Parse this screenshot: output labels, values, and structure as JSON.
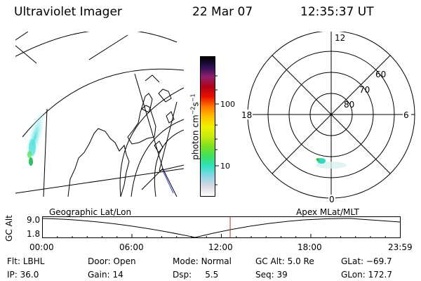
{
  "header": {
    "instrument": "Ultraviolet Imager",
    "date": "22 Mar 07",
    "time": "12:35:37 UT"
  },
  "colorbar": {
    "unit_label": "photon cm",
    "unit_exp1": "−2",
    "unit_mid": "s",
    "unit_exp2": "−1",
    "ticks": [
      "100",
      "10"
    ],
    "stops": [
      "#ffffff",
      "#d8d8e0",
      "#8ad8e8",
      "#30e0c0",
      "#40e060",
      "#7de020",
      "#c8ec10",
      "#f0f000",
      "#ffc000",
      "#ff7800",
      "#e81000",
      "#b00018",
      "#902070",
      "#2a1050",
      "#000000"
    ]
  },
  "polar": {
    "mlt_labels": [
      "12",
      "6",
      "0",
      "18"
    ],
    "mlat_labels": [
      "60",
      "70",
      "80"
    ]
  },
  "timeline": {
    "left_title": "Geographic Lat/Lon",
    "right_title": "Apex MLat/MLT",
    "axis_label": "GC Alt",
    "y_max": "9.0",
    "y_min": "1.8",
    "x_ticks": [
      "00:00",
      "06:00",
      "12:00",
      "18:00",
      "23:59"
    ],
    "current_time_hours": 12.59
  },
  "info": {
    "flt_label": "Flt:",
    "flt_value": "LBHL",
    "ip_label": "IP:",
    "ip_value": "36.0",
    "door_label": "Door:",
    "door_value": "Open",
    "gain_label": "Gain:",
    "gain_value": "14",
    "mode_label": "Mode:",
    "mode_value": "Normal",
    "dsp_label": "Dsp:",
    "dsp_value": "5.5",
    "gcalt_label": "GC Alt:",
    "gcalt_value": "5.0 Re",
    "seq_label": "Seq:",
    "seq_value": "39",
    "glat_label": "GLat:",
    "glat_value": "−69.7",
    "glon_label": "GLon:",
    "glon_value": "172.7"
  }
}
